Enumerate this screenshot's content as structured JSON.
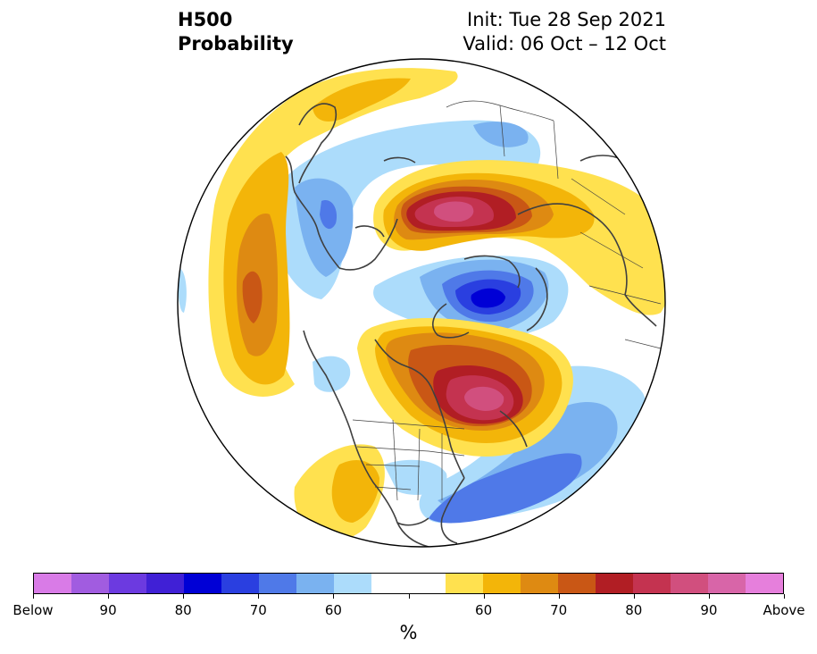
{
  "header": {
    "variable": "H500",
    "product": "Probability",
    "init": "Init: Tue 28 Sep 2021",
    "valid": "Valid: 06 Oct – 12 Oct"
  },
  "colorbar": {
    "unit": "%",
    "colors": [
      "#d97be7",
      "#a15ce0",
      "#6c3ae0",
      "#4020d6",
      "#0000d6",
      "#2a3fe0",
      "#4f79e8",
      "#7ab2f0",
      "#acdcfb",
      "#ffffff",
      "#ffffff",
      "#ffe14f",
      "#f3b509",
      "#de8a12",
      "#c95715",
      "#b11e24",
      "#c43350",
      "#d14f7e",
      "#d865a8",
      "#e67fdc"
    ],
    "tick_labels": [
      "Below",
      "90",
      "80",
      "70",
      "60",
      "",
      "",
      "60",
      "70",
      "80",
      "90",
      "Above"
    ]
  },
  "map": {
    "projection": "north-polar-stereographic",
    "colors": {
      "above_60": "#ffe14f",
      "above_65": "#f3b509",
      "above_70": "#de8a12",
      "above_75": "#c95715",
      "above_80": "#b11e24",
      "above_85": "#c43350",
      "above_90": "#d14f7e",
      "below_60": "#acdcfb",
      "below_65": "#7ab2f0",
      "below_70": "#4f79e8",
      "below_75": "#2a3fe0",
      "below_80": "#0000d6",
      "coast": "#404040"
    }
  }
}
